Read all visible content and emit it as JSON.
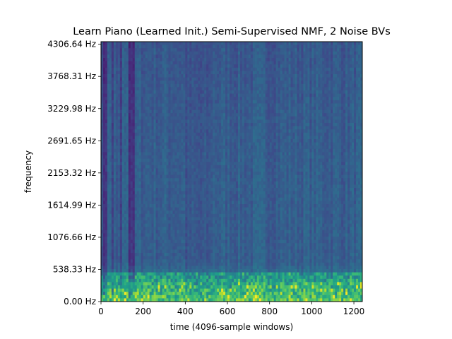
{
  "chart_data": {
    "type": "heatmap",
    "title": "Learn Piano (Learned Init.) Semi-Supervised NMF, 2 Noise BVs",
    "xlabel": "time (4096-sample windows)",
    "ylabel": "frequency",
    "xlim": [
      0,
      1240
    ],
    "ylim": [
      0,
      4350
    ],
    "x_ticks": [
      {
        "value": 0,
        "label": "0"
      },
      {
        "value": 200,
        "label": "200"
      },
      {
        "value": 400,
        "label": "400"
      },
      {
        "value": 600,
        "label": "600"
      },
      {
        "value": 800,
        "label": "800"
      },
      {
        "value": 1000,
        "label": "1000"
      },
      {
        "value": 1200,
        "label": "1200"
      }
    ],
    "y_ticks": [
      {
        "value": 0.0,
        "label": "0.00 Hz"
      },
      {
        "value": 538.33,
        "label": "538.33 Hz"
      },
      {
        "value": 1076.66,
        "label": "1076.66 Hz"
      },
      {
        "value": 1614.99,
        "label": "1614.99 Hz"
      },
      {
        "value": 2153.32,
        "label": "2153.32 Hz"
      },
      {
        "value": 2691.65,
        "label": "2691.65 Hz"
      },
      {
        "value": 3229.98,
        "label": "3229.98 Hz"
      },
      {
        "value": 3768.31,
        "label": "3768.31 Hz"
      },
      {
        "value": 4306.64,
        "label": "4306.64 Hz"
      }
    ],
    "colormap": "viridis",
    "colors": {
      "low": "#3e1f6e",
      "mid_low": "#31608d",
      "mid": "#2a788e",
      "mid_high": "#22a884",
      "high": "#bddf26"
    },
    "grid": false
  }
}
